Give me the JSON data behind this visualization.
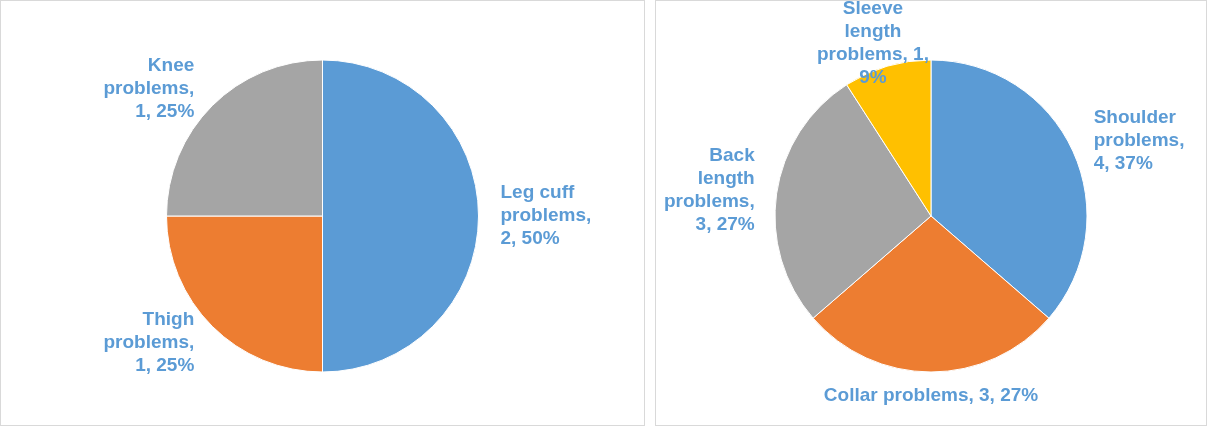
{
  "chart_data": [
    {
      "type": "pie",
      "categories": [
        "Leg cuff problems",
        "Thigh problems",
        "Knee problems"
      ],
      "values": [
        2,
        1,
        1
      ],
      "colors": [
        "#5b9bd5",
        "#ed7d31",
        "#a5a5a5"
      ],
      "value_labels": [
        ", 2, 50%",
        ", 1, 25%",
        ", 1, 25%"
      ]
    },
    {
      "type": "pie",
      "categories": [
        "Shoulder problems",
        "Collar problems",
        "Back length problems",
        "Sleeve length problems"
      ],
      "values": [
        4,
        3,
        3,
        1
      ],
      "colors": [
        "#5b9bd5",
        "#ed7d31",
        "#a5a5a5",
        "#ffc000"
      ],
      "value_labels": [
        ", 4, 37%",
        ", 3, 27%",
        ", 3, 27%",
        ", 1, 9%"
      ]
    }
  ]
}
